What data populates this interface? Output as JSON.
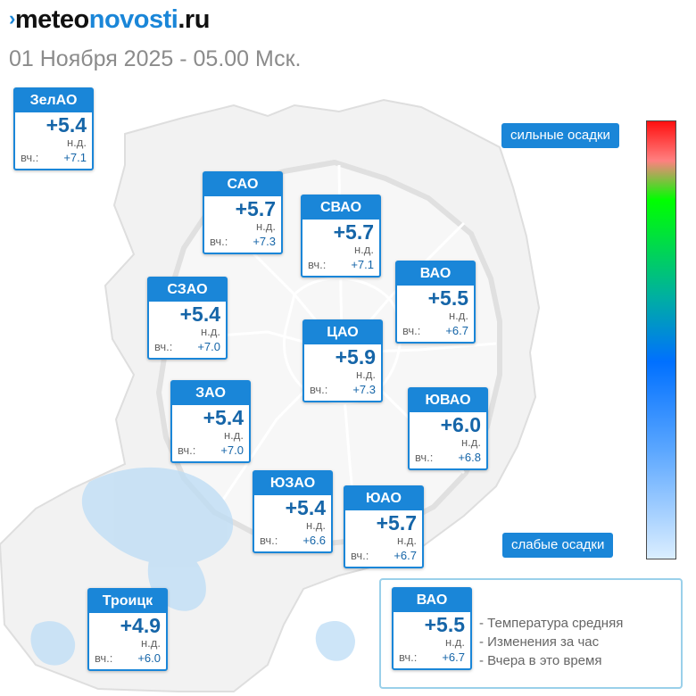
{
  "header": {
    "logo_prefix": "meteo",
    "logo_accent": "novosti",
    "logo_suffix": ".ru",
    "logo_mark": "›",
    "subtitle": "01 Ноября 2025 - 05.00 Мск."
  },
  "districts": [
    {
      "name": "ЗелАО",
      "temp": "+5.4",
      "change": "н.д.",
      "yesterday_label": "вч.:",
      "yesterday": "+7.1"
    },
    {
      "name": "САО",
      "temp": "+5.7",
      "change": "н.д.",
      "yesterday_label": "вч.:",
      "yesterday": "+7.3"
    },
    {
      "name": "СВАО",
      "temp": "+5.7",
      "change": "н.д.",
      "yesterday_label": "вч.:",
      "yesterday": "+7.1"
    },
    {
      "name": "СЗАО",
      "temp": "+5.4",
      "change": "н.д.",
      "yesterday_label": "вч.:",
      "yesterday": "+7.0"
    },
    {
      "name": "ВАО",
      "temp": "+5.5",
      "change": "н.д.",
      "yesterday_label": "вч.:",
      "yesterday": "+6.7"
    },
    {
      "name": "ЦАО",
      "temp": "+5.9",
      "change": "н.д.",
      "yesterday_label": "вч.:",
      "yesterday": "+7.3"
    },
    {
      "name": "ЗАО",
      "temp": "+5.4",
      "change": "н.д.",
      "yesterday_label": "вч.:",
      "yesterday": "+7.0"
    },
    {
      "name": "ЮВАО",
      "temp": "+6.0",
      "change": "н.д.",
      "yesterday_label": "вч.:",
      "yesterday": "+6.8"
    },
    {
      "name": "ЮЗАО",
      "temp": "+5.4",
      "change": "н.д.",
      "yesterday_label": "вч.:",
      "yesterday": "+6.6"
    },
    {
      "name": "ЮАО",
      "temp": "+5.7",
      "change": "н.д.",
      "yesterday_label": "вч.:",
      "yesterday": "+6.7"
    },
    {
      "name": "Троицк",
      "temp": "+4.9",
      "change": "н.д.",
      "yesterday_label": "вч.:",
      "yesterday": "+6.0"
    }
  ],
  "scale": {
    "top_label": "сильные осадки",
    "bottom_label": "слабые осадки",
    "colors": [
      "#ff1010",
      "#00ff00",
      "#0070ff",
      "#dbeeff"
    ]
  },
  "legend": {
    "sample": {
      "name": "ВАО",
      "temp": "+5.5",
      "change": "н.д.",
      "yesterday_label": "вч.:",
      "yesterday": "+6.7"
    },
    "line1": "- Температура средняя",
    "line2": "- Изменения за час",
    "line3": "- Вчера в это время"
  },
  "colors": {
    "accent": "#1a86d8",
    "temp_text": "#1565a8",
    "precip_light": "#bcdcf5"
  }
}
